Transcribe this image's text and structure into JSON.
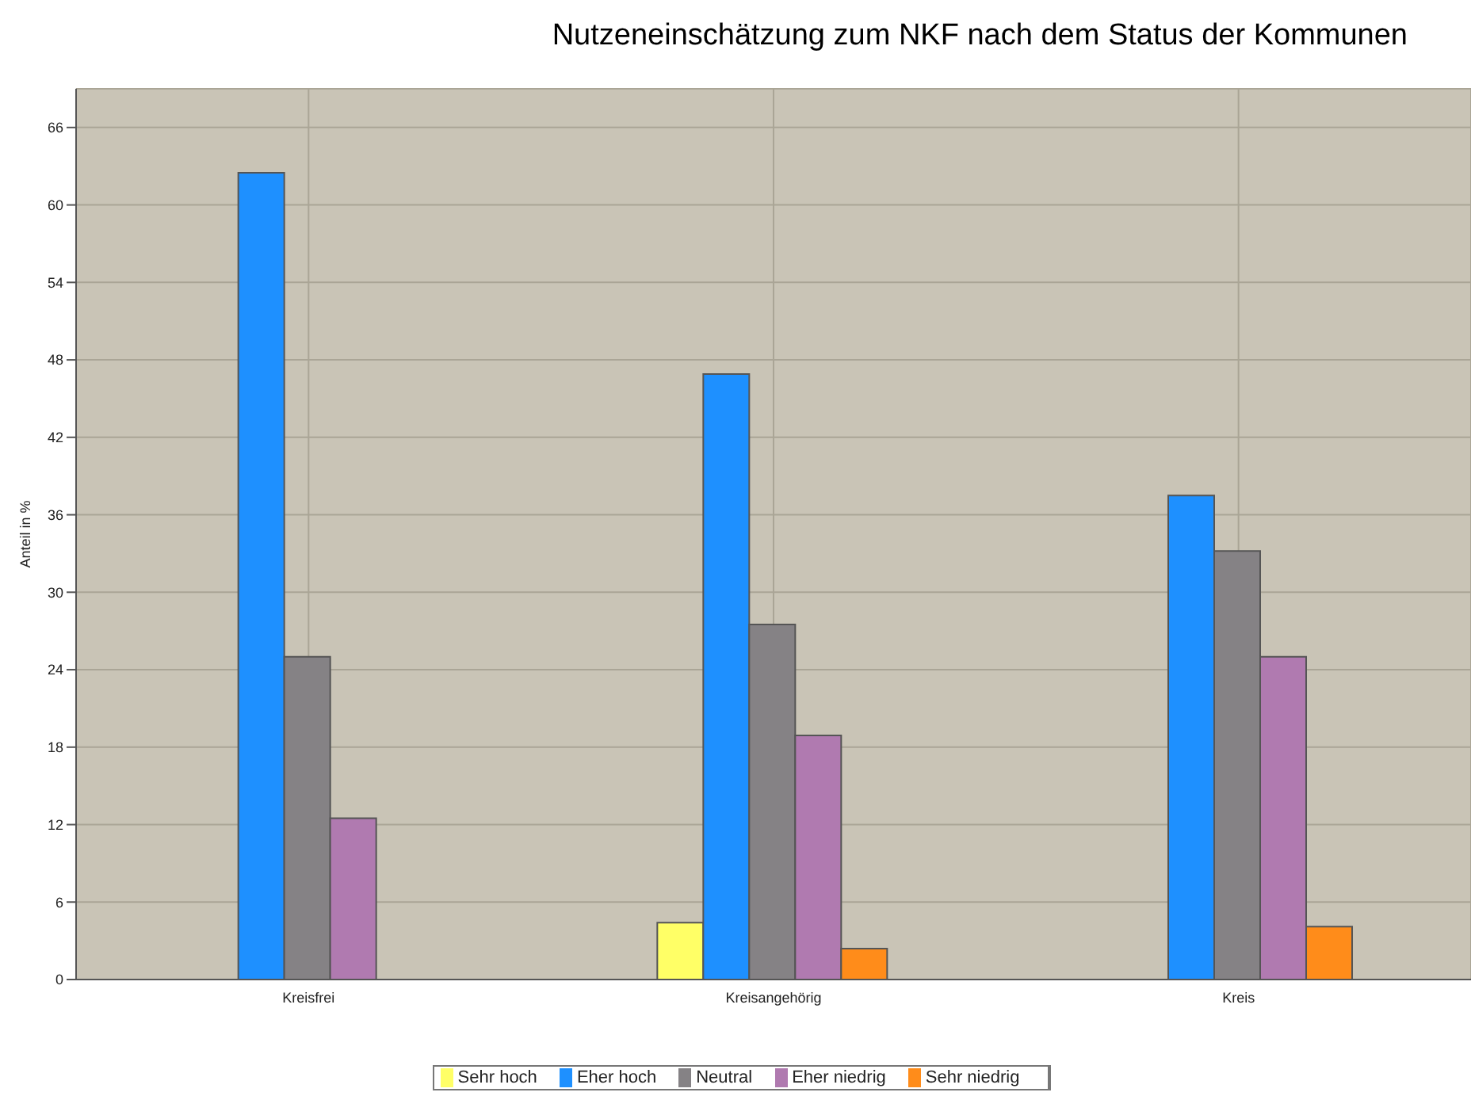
{
  "chart_data": {
    "type": "bar",
    "title": "Nutzeneinschätzung zum NKF nach dem Status der Kommunen",
    "ylabel": "Anteil in %",
    "categories": [
      "Kreisfrei",
      "Kreisangehörig",
      "Kreis"
    ],
    "series": [
      {
        "name": "Sehr hoch",
        "color": "#ffff66",
        "values": [
          0,
          4.4,
          0
        ]
      },
      {
        "name": "Eher hoch",
        "color": "#1e90ff",
        "values": [
          62.5,
          46.9,
          37.5
        ]
      },
      {
        "name": "Neutral",
        "color": "#858285",
        "values": [
          25,
          27.5,
          33.2
        ]
      },
      {
        "name": "Eher niedrig",
        "color": "#b07ab0",
        "values": [
          12.5,
          18.9,
          25
        ]
      },
      {
        "name": "Sehr niedrig",
        "color": "#ff8c1a",
        "values": [
          0,
          2.4,
          4.1
        ]
      }
    ],
    "ylim": [
      0,
      69
    ],
    "yticks": [
      0,
      6,
      12,
      18,
      24,
      30,
      36,
      42,
      48,
      54,
      60,
      66
    ],
    "grid": true,
    "legend": "bottom"
  }
}
